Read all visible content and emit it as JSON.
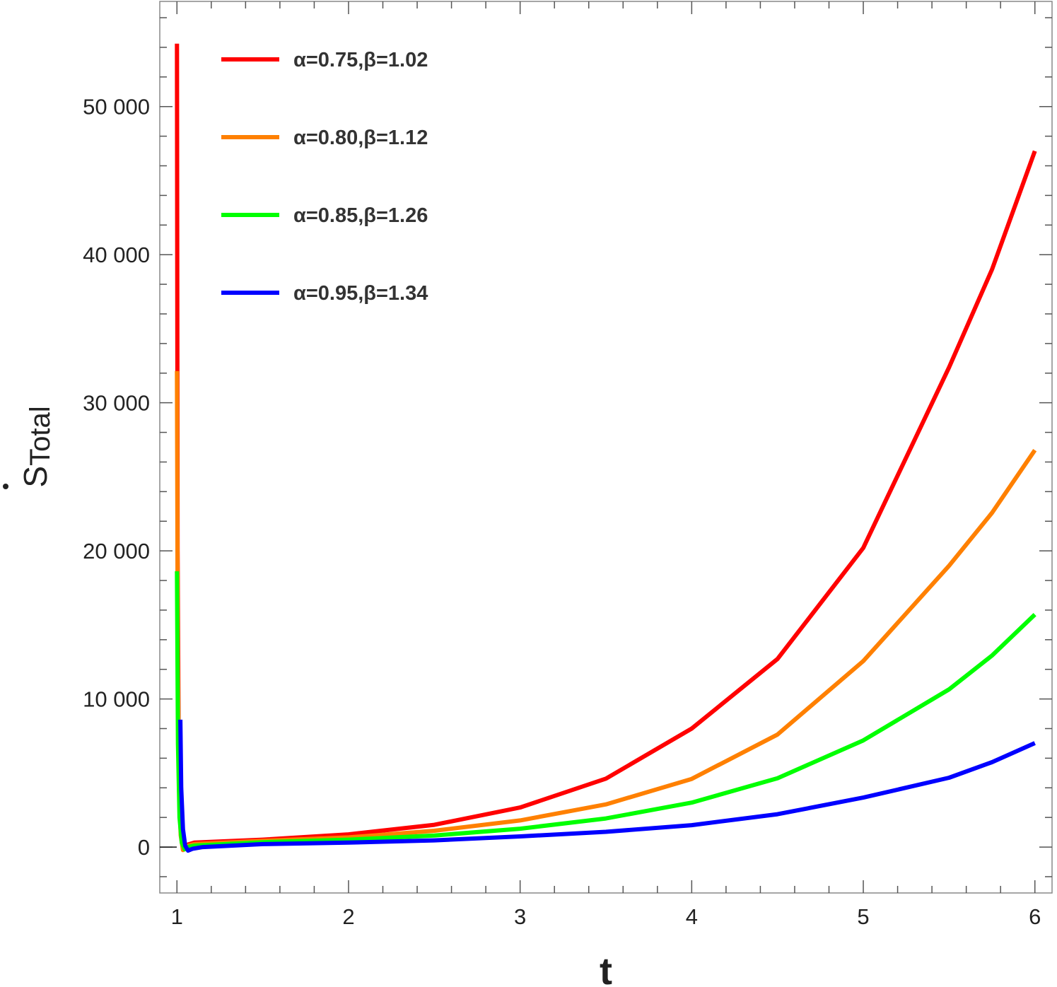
{
  "chart_data": {
    "type": "line",
    "title": "",
    "xlabel": "t",
    "ylabel": "S",
    "ylabel_accent": "dot",
    "ylabel_subscript": "Total",
    "xlim": [
      0.9,
      6.1
    ],
    "ylim": [
      -3100,
      57100
    ],
    "xticks": [
      1,
      2,
      3,
      4,
      5,
      6
    ],
    "xtick_labels": [
      "1",
      "2",
      "3",
      "4",
      "5",
      "6"
    ],
    "yticks": [
      0,
      10000,
      20000,
      30000,
      40000,
      50000
    ],
    "ytick_labels": [
      "0",
      "10 000",
      "20 000",
      "30 000",
      "40 000",
      "50 000"
    ],
    "grid": false,
    "legend_position": "top-left",
    "series": [
      {
        "name": "α=0.75,β=1.02",
        "color": "#ff0000",
        "points": [
          [
            1.0,
            54250
          ],
          [
            1.004,
            20000
          ],
          [
            1.01,
            7000
          ],
          [
            1.02,
            1500
          ],
          [
            1.035,
            -150
          ],
          [
            1.06,
            150
          ],
          [
            1.1,
            300
          ],
          [
            1.5,
            500
          ],
          [
            2,
            860
          ],
          [
            2.5,
            1500
          ],
          [
            3,
            2670
          ],
          [
            3.5,
            4620
          ],
          [
            4,
            8000
          ],
          [
            4.5,
            12700
          ],
          [
            5,
            20200
          ],
          [
            5.5,
            32400
          ],
          [
            5.75,
            39000
          ],
          [
            6,
            47000
          ]
        ]
      },
      {
        "name": "α=0.80,β=1.12",
        "color": "#ff8000",
        "points": [
          [
            1.0,
            32140
          ],
          [
            1.005,
            12000
          ],
          [
            1.012,
            4000
          ],
          [
            1.022,
            800
          ],
          [
            1.035,
            -200
          ],
          [
            1.06,
            80
          ],
          [
            1.1,
            200
          ],
          [
            1.5,
            420
          ],
          [
            2,
            650
          ],
          [
            2.5,
            1100
          ],
          [
            3,
            1800
          ],
          [
            3.5,
            2880
          ],
          [
            4,
            4600
          ],
          [
            4.5,
            7600
          ],
          [
            5,
            12560
          ],
          [
            5.5,
            19000
          ],
          [
            5.75,
            22570
          ],
          [
            6,
            26800
          ]
        ]
      },
      {
        "name": "α=0.85,β=1.26",
        "color": "#00ff00",
        "points": [
          [
            1.0,
            18620
          ],
          [
            1.006,
            7000
          ],
          [
            1.015,
            2000
          ],
          [
            1.028,
            300
          ],
          [
            1.045,
            -150
          ],
          [
            1.07,
            20
          ],
          [
            1.1,
            100
          ],
          [
            1.5,
            330
          ],
          [
            2,
            500
          ],
          [
            2.5,
            780
          ],
          [
            3,
            1240
          ],
          [
            3.5,
            1930
          ],
          [
            4,
            3000
          ],
          [
            4.5,
            4650
          ],
          [
            5,
            7200
          ],
          [
            5.5,
            10650
          ],
          [
            5.75,
            12930
          ],
          [
            6,
            15700
          ]
        ]
      },
      {
        "name": "α=0.95,β=1.34",
        "color": "#0000ff",
        "points": [
          [
            1.02,
            8600
          ],
          [
            1.025,
            4000
          ],
          [
            1.035,
            1200
          ],
          [
            1.048,
            100
          ],
          [
            1.065,
            -240
          ],
          [
            1.09,
            -120
          ],
          [
            1.15,
            0
          ],
          [
            1.5,
            200
          ],
          [
            2,
            300
          ],
          [
            2.5,
            450
          ],
          [
            3,
            720
          ],
          [
            3.5,
            1030
          ],
          [
            4,
            1480
          ],
          [
            4.5,
            2220
          ],
          [
            5,
            3340
          ],
          [
            5.5,
            4680
          ],
          [
            5.75,
            5730
          ],
          [
            6,
            7020
          ]
        ]
      }
    ]
  }
}
